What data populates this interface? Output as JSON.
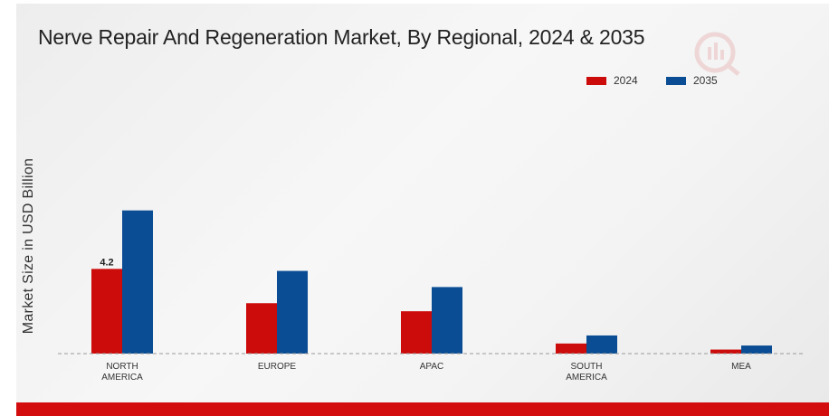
{
  "colors": {
    "series_2024": "#cc0b0b",
    "series_2035": "#0a4d94",
    "footer": "#d30d0d",
    "baseline": "#9a9a9a"
  },
  "icons": {
    "watermark": "logo-watermark-icon"
  },
  "chart_data": {
    "type": "bar",
    "title": "Nerve Repair And Regeneration Market, By Regional, 2024 & 2035",
    "xlabel": "",
    "ylabel": "Market Size in USD Billion",
    "categories": [
      [
        "NORTH",
        "AMERICA"
      ],
      [
        "EUROPE"
      ],
      [
        "APAC"
      ],
      [
        "SOUTH",
        "AMERICA"
      ],
      [
        "MEA"
      ]
    ],
    "series": [
      {
        "name": "2024",
        "values": [
          4.2,
          2.5,
          2.1,
          0.5,
          0.2
        ]
      },
      {
        "name": "2035",
        "values": [
          7.1,
          4.1,
          3.3,
          0.9,
          0.4
        ]
      }
    ],
    "data_labels": [
      {
        "series": 0,
        "index": 0,
        "text": "4.2"
      }
    ],
    "ylim": [
      0,
      10
    ],
    "grid": false,
    "baseline": "dashed",
    "legend": "top-right"
  }
}
